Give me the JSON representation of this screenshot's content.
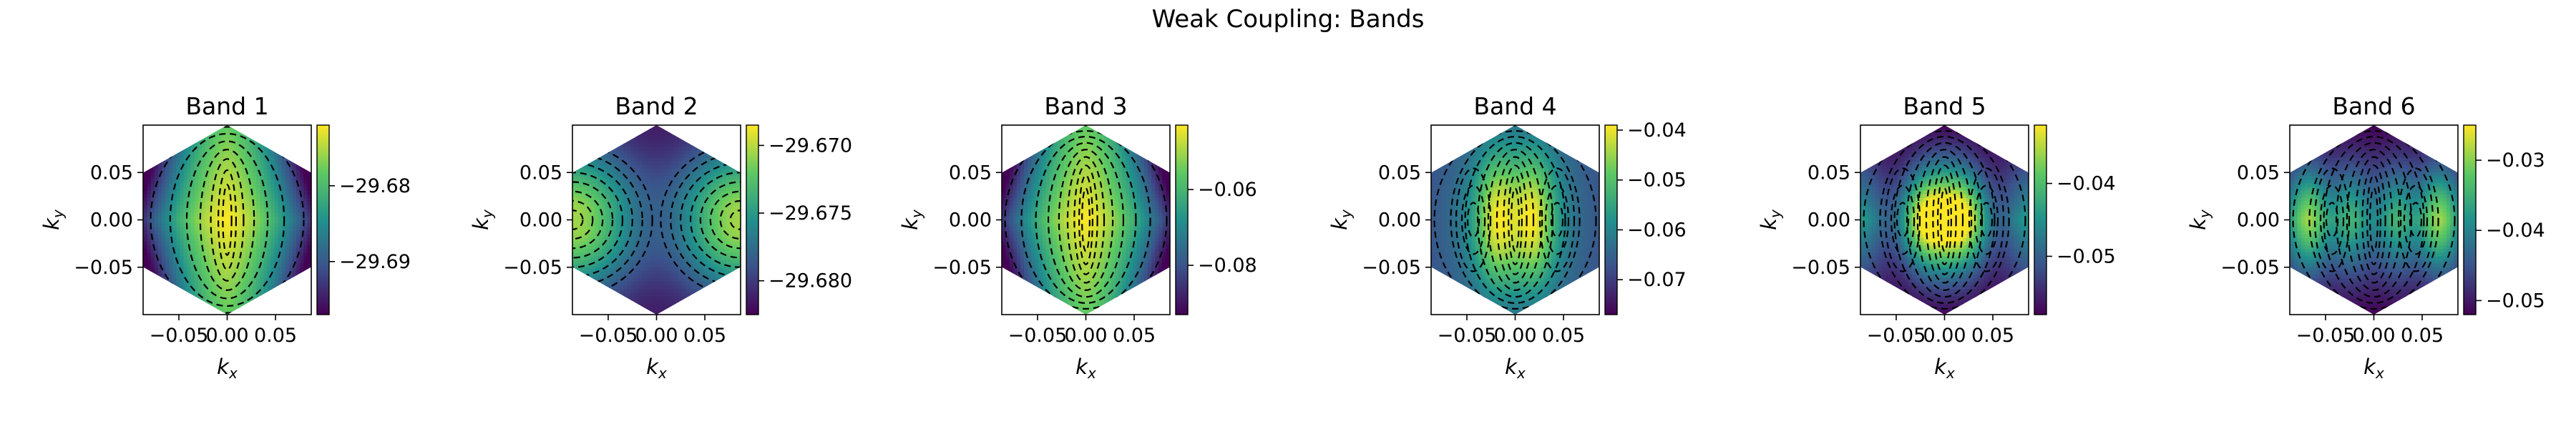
{
  "title": "Weak Coupling: Bands",
  "colormap": [
    "#440154",
    "#3b528b",
    "#21918c",
    "#5ec962",
    "#fde725"
  ],
  "contour_color": "#000000",
  "chart_data": [
    {
      "type": "heatmap",
      "title": "Band 1",
      "xlabel": "k_x",
      "ylabel": "k_y",
      "xlim": [
        -0.087,
        0.087
      ],
      "ylim": [
        -0.1,
        0.1
      ],
      "xticks": [
        -0.05,
        0.0,
        0.05
      ],
      "xtick_labels": [
        "−0.05",
        "0.00",
        "0.05"
      ],
      "yticks": [
        -0.05,
        0.0,
        0.05
      ],
      "ytick_labels": [
        "−0.05",
        "0.00",
        "0.05"
      ],
      "domain": "hexagon",
      "colorbar": {
        "range": [
          -29.697,
          -29.672
        ],
        "ticks": [
          -29.68,
          -29.69
        ],
        "tick_labels": [
          "−29.68",
          "−29.69"
        ]
      },
      "pattern": "single-elongated-max",
      "contour_levels": 8
    },
    {
      "type": "heatmap",
      "title": "Band 2",
      "xlabel": "k_x",
      "ylabel": "k_y",
      "xlim": [
        -0.087,
        0.087
      ],
      "ylim": [
        -0.1,
        0.1
      ],
      "xticks": [
        -0.05,
        0.0,
        0.05
      ],
      "xtick_labels": [
        "−0.05",
        "0.00",
        "0.05"
      ],
      "yticks": [
        -0.05,
        0.0,
        0.05
      ],
      "ytick_labels": [
        "−0.05",
        "0.00",
        "0.05"
      ],
      "domain": "hexagon",
      "colorbar": {
        "range": [
          -29.6825,
          -29.6685
        ],
        "ticks": [
          -29.67,
          -29.675,
          -29.68
        ],
        "tick_labels": [
          "−29.670",
          "−29.675",
          "−29.680"
        ]
      },
      "pattern": "two-side-max",
      "contour_levels": 8
    },
    {
      "type": "heatmap",
      "title": "Band 3",
      "xlabel": "k_x",
      "ylabel": "k_y",
      "xlim": [
        -0.087,
        0.087
      ],
      "ylim": [
        -0.1,
        0.1
      ],
      "xticks": [
        -0.05,
        0.0,
        0.05
      ],
      "xtick_labels": [
        "−0.05",
        "0.00",
        "0.05"
      ],
      "yticks": [
        -0.05,
        0.0,
        0.05
      ],
      "ytick_labels": [
        "−0.05",
        "0.00",
        "0.05"
      ],
      "domain": "hexagon",
      "colorbar": {
        "range": [
          -0.093,
          -0.043
        ],
        "ticks": [
          -0.06,
          -0.08
        ],
        "tick_labels": [
          "−0.06",
          "−0.08"
        ]
      },
      "pattern": "single-elongated-max",
      "contour_levels": 10
    },
    {
      "type": "heatmap",
      "title": "Band 4",
      "xlabel": "k_x",
      "ylabel": "k_y",
      "xlim": [
        -0.087,
        0.087
      ],
      "ylim": [
        -0.1,
        0.1
      ],
      "xticks": [
        -0.05,
        0.0,
        0.05
      ],
      "xtick_labels": [
        "−0.05",
        "0.00",
        "0.05"
      ],
      "yticks": [
        -0.05,
        0.0,
        0.05
      ],
      "ytick_labels": [
        "−0.05",
        "0.00",
        "0.05"
      ],
      "domain": "hexagon",
      "colorbar": {
        "range": [
          -0.077,
          -0.039
        ],
        "ticks": [
          -0.04,
          -0.05,
          -0.06,
          -0.07
        ],
        "tick_labels": [
          "−0.04",
          "−0.05",
          "−0.06",
          "−0.07"
        ]
      },
      "pattern": "three-central-max",
      "contour_levels": 10
    },
    {
      "type": "heatmap",
      "title": "Band 5",
      "xlabel": "k_x",
      "ylabel": "k_y",
      "xlim": [
        -0.087,
        0.087
      ],
      "ylim": [
        -0.1,
        0.1
      ],
      "xticks": [
        -0.05,
        0.0,
        0.05
      ],
      "xtick_labels": [
        "−0.05",
        "0.00",
        "0.05"
      ],
      "yticks": [
        -0.05,
        0.0,
        0.05
      ],
      "ytick_labels": [
        "−0.05",
        "0.00",
        "0.05"
      ],
      "domain": "hexagon",
      "colorbar": {
        "range": [
          -0.058,
          -0.032
        ],
        "ticks": [
          -0.04,
          -0.05
        ],
        "tick_labels": [
          "−0.04",
          "−0.05"
        ]
      },
      "pattern": "four-lobe-max",
      "contour_levels": 10
    },
    {
      "type": "heatmap",
      "title": "Band 6",
      "xlabel": "k_x",
      "ylabel": "k_y",
      "xlim": [
        -0.087,
        0.087
      ],
      "ylim": [
        -0.1,
        0.1
      ],
      "xticks": [
        -0.05,
        0.0,
        0.05
      ],
      "xtick_labels": [
        "−0.05",
        "0.00",
        "0.05"
      ],
      "yticks": [
        -0.05,
        0.0,
        0.05
      ],
      "ytick_labels": [
        "−0.05",
        "0.00",
        "0.05"
      ],
      "domain": "hexagon",
      "colorbar": {
        "range": [
          -0.052,
          -0.025
        ],
        "ticks": [
          -0.03,
          -0.04,
          -0.05
        ],
        "tick_labels": [
          "−0.03",
          "−0.04",
          "−0.05"
        ]
      },
      "pattern": "four-lobe-with-side-max",
      "contour_levels": 10
    }
  ]
}
